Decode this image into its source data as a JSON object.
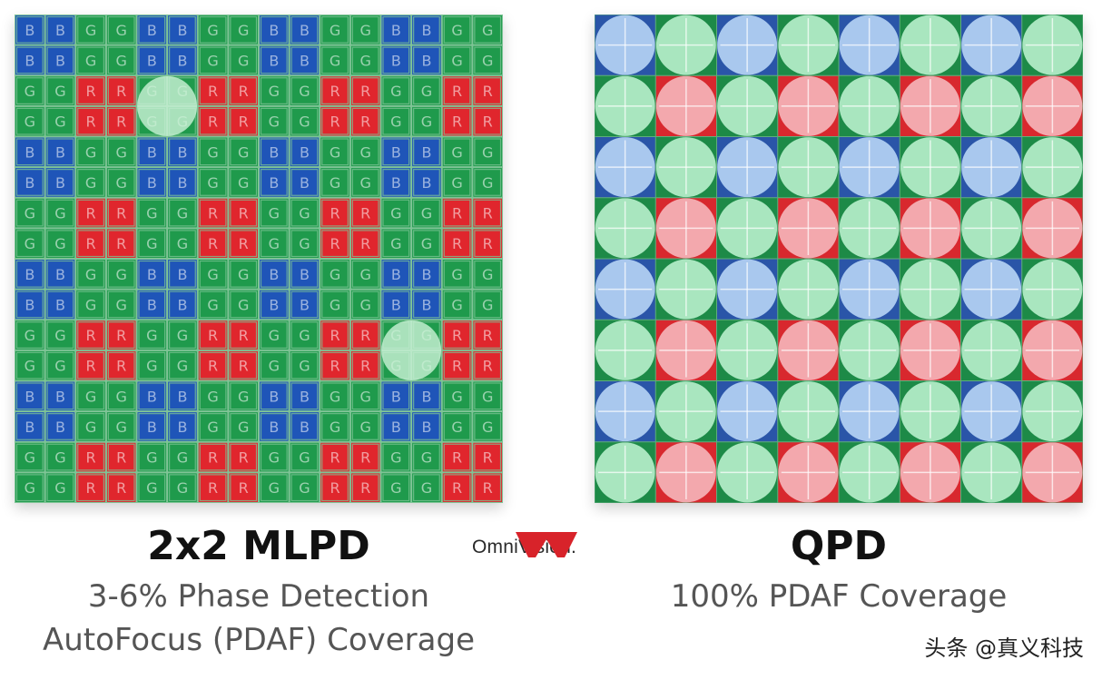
{
  "mlpd": {
    "title": "2x2 MLPD",
    "description": "3-6% Phase Detection AutoFocus (PDAF) Coverage",
    "pixel_labels": {
      "blue": "B",
      "green": "G",
      "red": "R"
    },
    "pd_microlens_cells": [
      [
        2,
        1
      ],
      [
        6,
        5
      ]
    ]
  },
  "qpd": {
    "title": "QPD",
    "description": "100% PDAF Coverage"
  },
  "logo": {
    "text": "OmniVision."
  },
  "watermark": {
    "text": "头条 @真义科技"
  },
  "colors": {
    "blue": "#1f55b8",
    "green": "#1f9a4c",
    "red": "#e0262d",
    "grid_line": "#7fc496",
    "qpd_blue": "#a9c8ee",
    "qpd_green": "#a9e6bf",
    "qpd_red": "#f3a8ad",
    "logo_red": "#d8232a"
  }
}
